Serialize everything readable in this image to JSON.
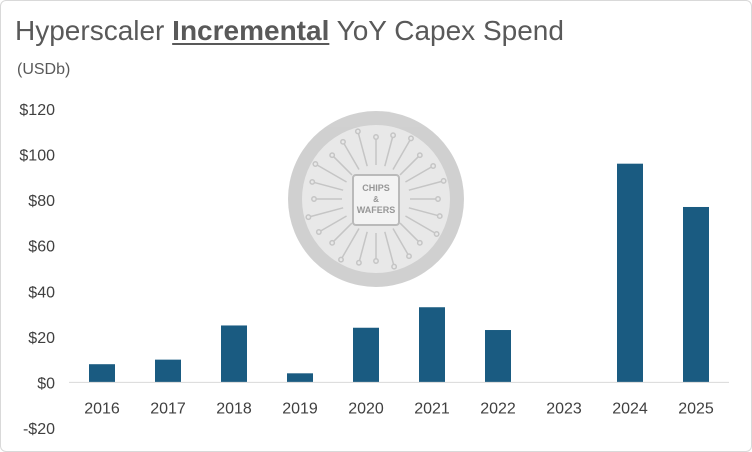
{
  "title": {
    "before": "Hyperscaler ",
    "emphasis": "Incremental",
    "after": " YoY Capex Spend"
  },
  "subtitle": "(USDb)",
  "watermark": {
    "line1": "CHIPS",
    "line2": "&",
    "line3": "WAFERS",
    "icon": "chip-logo-watermark"
  },
  "colors": {
    "bar": "#1a5b81",
    "axis_text": "#404040",
    "title": "#595959",
    "watermark": "#c8c8c8"
  },
  "chart_data": {
    "type": "bar",
    "title": "Hyperscaler Incremental YoY Capex Spend",
    "subtitle": "(USDb)",
    "xlabel": "",
    "ylabel": "",
    "categories": [
      "2016",
      "2017",
      "2018",
      "2019",
      "2020",
      "2021",
      "2022",
      "2023",
      "2024",
      "2025"
    ],
    "values": [
      8,
      10,
      25,
      4,
      24,
      33,
      23,
      0,
      96,
      77
    ],
    "ylim": [
      -20,
      120
    ],
    "yticks": [
      -20,
      0,
      20,
      40,
      60,
      80,
      100,
      120
    ],
    "ytick_labels": [
      "-$20",
      "$0",
      "$20",
      "$40",
      "$60",
      "$80",
      "$100",
      "$120"
    ],
    "grid": false,
    "legend": "none"
  }
}
